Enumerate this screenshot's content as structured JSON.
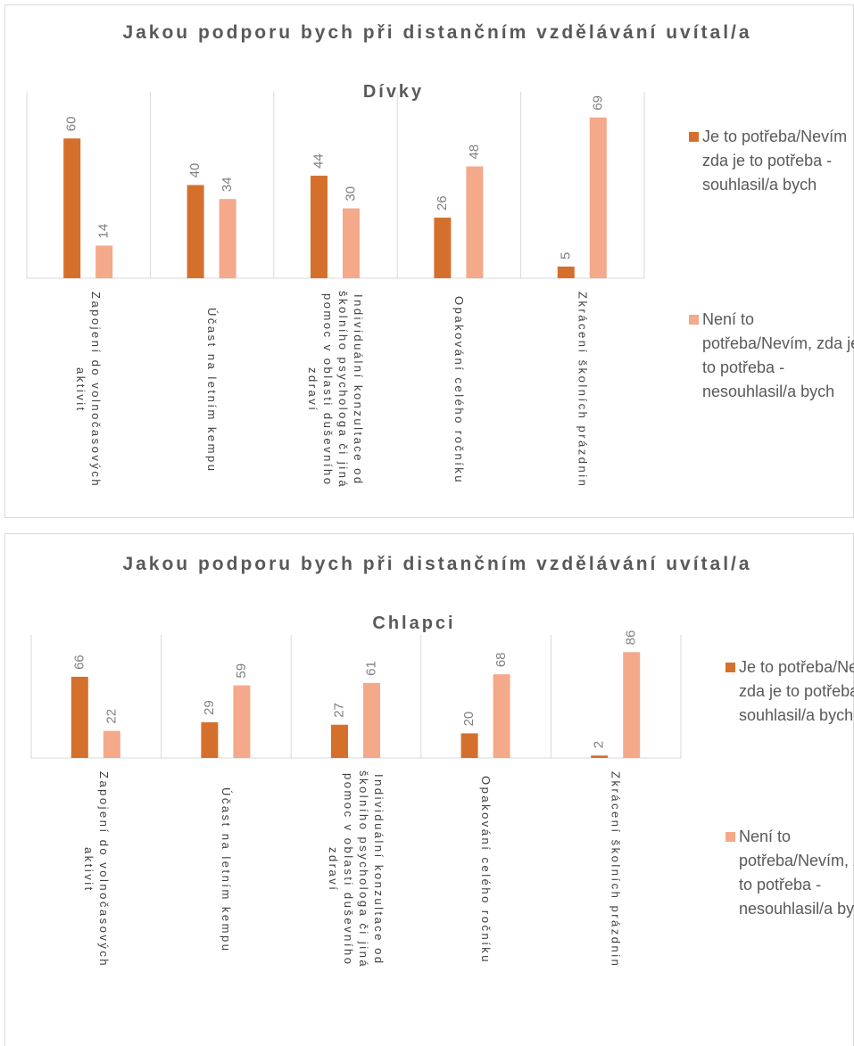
{
  "chart_data": [
    {
      "type": "bar",
      "title": "Jakou podporu bych při distančním vzdělávání uvítal/a",
      "subtitle": "Dívky",
      "categories": [
        "Zapojení do volnočasových aktivit",
        "Účast na letním kempu",
        "Individuální konzultace od školního psychologa či jiná pomoc v oblasti duševního zdraví",
        "Opakování celého ročníku",
        "Zkrácení školních prázdnin"
      ],
      "series": [
        {
          "name": "Je to potřeba/Nevím zda je to potřeba - souhlasil/a bych",
          "color": "#d4702c",
          "values": [
            60,
            40,
            44,
            26,
            5
          ]
        },
        {
          "name": "Není to potřeba/Nevím, zda je to potřeba - nesouhlasil/a bych",
          "color": "#f4a98a",
          "values": [
            14,
            34,
            30,
            48,
            69
          ]
        }
      ],
      "ylim": [
        0,
        80
      ],
      "legend": "right"
    },
    {
      "type": "bar",
      "title": "Jakou podporu bych při distančním vzdělávání uvítal/a",
      "subtitle": "Chlapci",
      "categories": [
        "Zapojení do volnočasových aktivit",
        "Účast na letním kempu",
        "Individuální konzultace od školního psychologa či jiná pomoc v oblasti duševního zdraví",
        "Opakování celého ročníku",
        "Zkrácení školních prázdnin"
      ],
      "series": [
        {
          "name": "Je to potřeba/Nevím zda je to potřeba - souhlasil/a bych",
          "color": "#d4702c",
          "values": [
            66,
            29,
            27,
            20,
            2
          ]
        },
        {
          "name": "Není to potřeba/Nevím, zda je to potřeba - nesouhlasil/a bych",
          "color": "#f4a98a",
          "values": [
            22,
            59,
            61,
            68,
            86
          ]
        }
      ],
      "ylim": [
        0,
        100
      ],
      "legend": "right"
    }
  ]
}
